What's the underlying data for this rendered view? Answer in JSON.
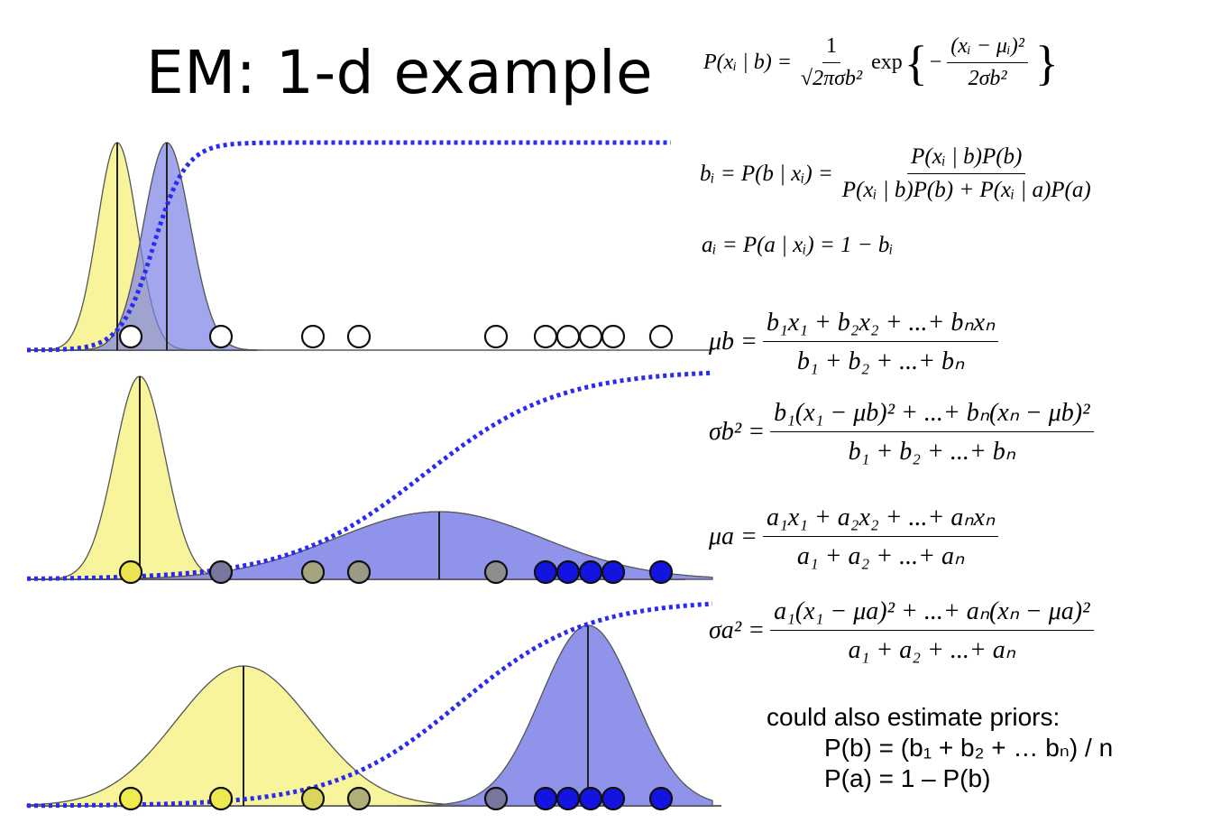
{
  "title": "EM: 1-d example",
  "colors": {
    "yellow_fill": "#f6f28a",
    "blue_fill": "#7b80e6",
    "dot_blue": "#1414e0",
    "dot_yellow": "#f5f04a",
    "sigmoid": "#2b2bf0"
  },
  "equations": {
    "likelihood": {
      "lhs": "P(xᵢ | b) =",
      "num": "1",
      "den": "√2πσb²",
      "exp_label": "exp",
      "exp_num": "(xᵢ − μᵢ)²",
      "exp_den": "2σb²"
    },
    "posterior_b": {
      "lhs": "bᵢ = P(b | xᵢ) =",
      "num": "P(xᵢ | b)P(b)",
      "den": "P(xᵢ | b)P(b) + P(xᵢ | a)P(a)"
    },
    "posterior_a": "aᵢ = P(a | xᵢ) = 1 − bᵢ",
    "mu_b": {
      "lhs": "μb =",
      "num": "b₁x₁ + b₂x₂ + ...+ bₙxₙ",
      "den": "b₁ + b₂ + ...+ bₙ"
    },
    "sigma_b": {
      "lhs": "σb² =",
      "num": "b₁(x₁ − μb)² + ...+ bₙ(xₙ − μb)²",
      "den": "b₁ + b₂ + ...+ bₙ"
    },
    "mu_a": {
      "lhs": "μa =",
      "num": "a₁x₁ + a₂x₂ + ...+ aₙxₙ",
      "den": "a₁ + a₂ + ...+ aₙ"
    },
    "sigma_a": {
      "lhs": "σa² =",
      "num": "a₁(x₁ − μa)² + ...+ aₙ(xₙ − μa)²",
      "den": "a₁ + a₂ + ...+ aₙ"
    }
  },
  "priors": {
    "intro": "could also estimate priors:",
    "pb": "P(b) = (b₁ + b₂ + … bₙ) / n",
    "pa": "P(a) = 1 – P(b)"
  },
  "panels": [
    {
      "stage": "initial",
      "yellow": {
        "mean": 130,
        "sd": 22,
        "height": 230
      },
      "blue": {
        "mean": 185,
        "sd": 26,
        "height": 230
      },
      "point_shades": [
        0,
        0,
        0,
        0,
        0,
        0,
        0,
        0,
        0,
        0
      ]
    },
    {
      "stage": "iteration",
      "yellow": {
        "mean": 155,
        "sd": 28,
        "height": 225
      },
      "blue": {
        "mean": 487,
        "sd": 115,
        "height": 75
      },
      "point_shades": [
        0.05,
        0.55,
        0.35,
        0.4,
        0.45,
        1,
        1,
        1,
        1,
        1
      ]
    },
    {
      "stage": "converged",
      "yellow": {
        "mean": 270,
        "sd": 75,
        "height": 155
      },
      "blue": {
        "mean": 652,
        "sd": 52,
        "height": 200
      },
      "point_shades": [
        0.02,
        0.03,
        0.12,
        0.3,
        0.55,
        1,
        1,
        1,
        1,
        1
      ]
    }
  ],
  "points_x": [
    145,
    245,
    347,
    398,
    550,
    605,
    630,
    655,
    680,
    733
  ]
}
